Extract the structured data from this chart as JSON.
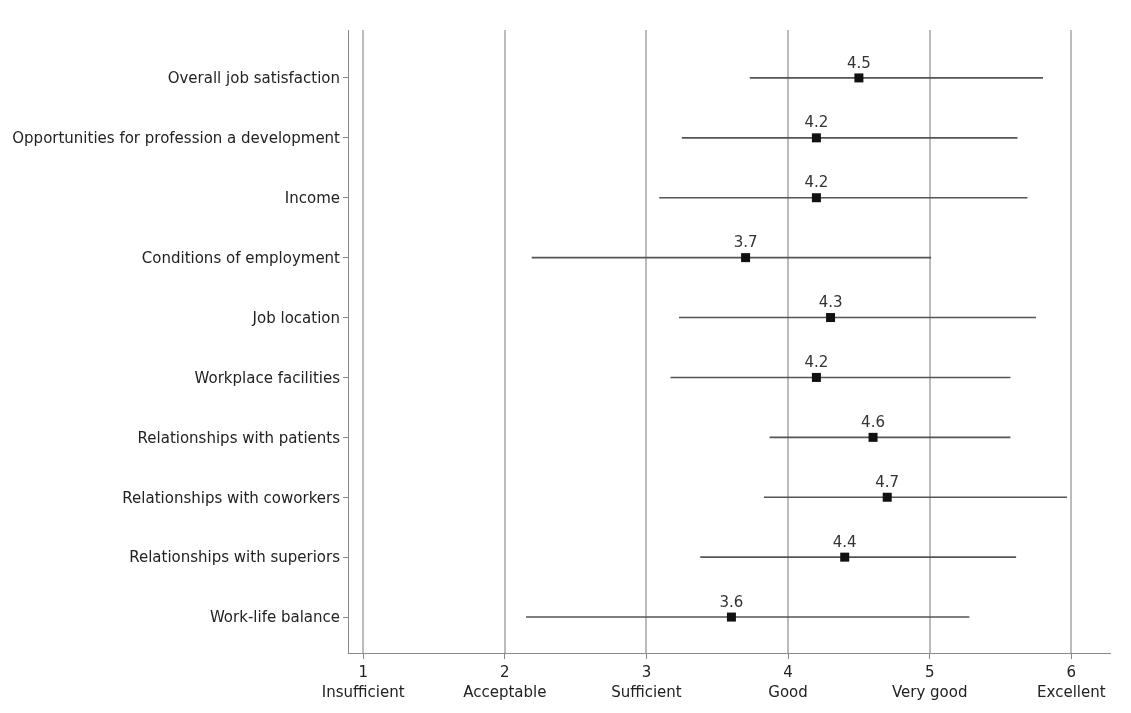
{
  "chart_data": {
    "type": "scatter",
    "orientation": "horizontal",
    "categories": [
      "Overall job satisfaction",
      "Opportunities for profession a development",
      "Income",
      "Conditions of employment",
      "Job location",
      "Workplace facilities",
      "Relationships with patients",
      "Relationships with coworkers",
      "Relationships with superiors",
      "Work-life balance"
    ],
    "series": [
      {
        "color": "#111111",
        "values": [
          4.5,
          4.2,
          4.2,
          3.7,
          4.3,
          4.2,
          4.6,
          4.7,
          4.4,
          3.6
        ],
        "errors": [
          [
            3.73,
            5.8
          ],
          [
            3.25,
            5.62
          ],
          [
            3.09,
            5.69
          ],
          [
            2.19,
            5.01
          ],
          [
            3.23,
            5.75
          ],
          [
            3.17,
            5.57
          ],
          [
            3.87,
            5.57
          ],
          [
            3.83,
            5.97
          ],
          [
            3.38,
            5.61
          ],
          [
            2.15,
            5.28
          ]
        ]
      }
    ],
    "xlim": [
      0.9,
      6.28
    ],
    "xticks": [
      {
        "value": 1,
        "label": "1\nInsufficient"
      },
      {
        "value": 2,
        "label": "2\nAcceptable"
      },
      {
        "value": 3,
        "label": "3\nSufficient"
      },
      {
        "value": 4,
        "label": "4\nGood"
      },
      {
        "value": 5,
        "label": "5\nVery good"
      },
      {
        "value": 6,
        "label": "6\nExcellent"
      }
    ],
    "grid": "x",
    "marker": "square",
    "data_labels": true
  }
}
